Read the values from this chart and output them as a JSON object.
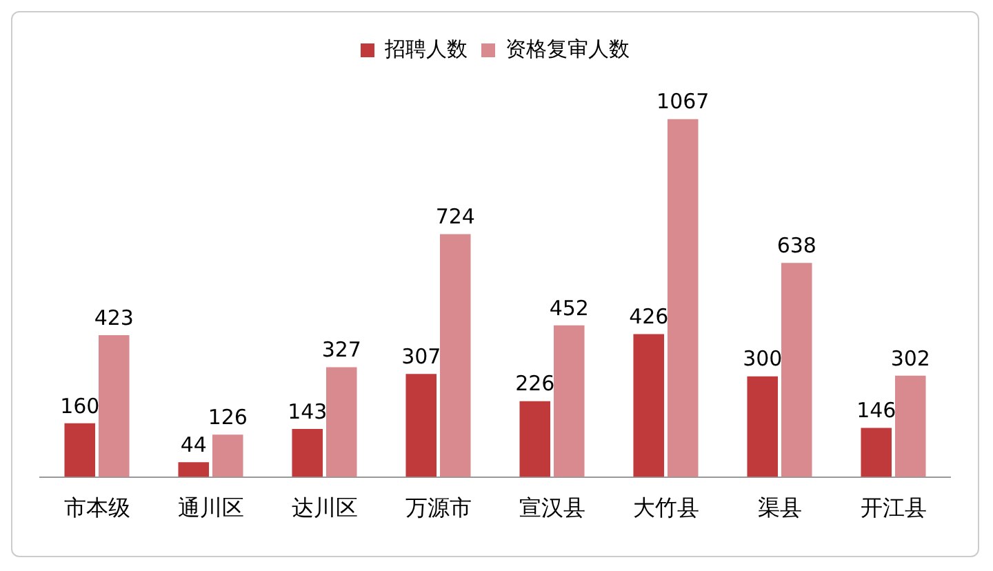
{
  "chart_data": {
    "type": "bar",
    "categories": [
      "市本级",
      "通川区",
      "达川区",
      "万源市",
      "宣汉县",
      "大竹县",
      "渠县",
      "开江县"
    ],
    "series": [
      {
        "name": "招聘人数",
        "color": "#c0393b",
        "values": [
          160,
          44,
          143,
          307,
          226,
          426,
          300,
          146
        ]
      },
      {
        "name": "资格复审人数",
        "color": "#d98a8e",
        "values": [
          423,
          126,
          327,
          724,
          452,
          1067,
          638,
          302
        ]
      }
    ],
    "data_labels": true,
    "grid": false,
    "legend": "top",
    "tick_labels": "x"
  }
}
